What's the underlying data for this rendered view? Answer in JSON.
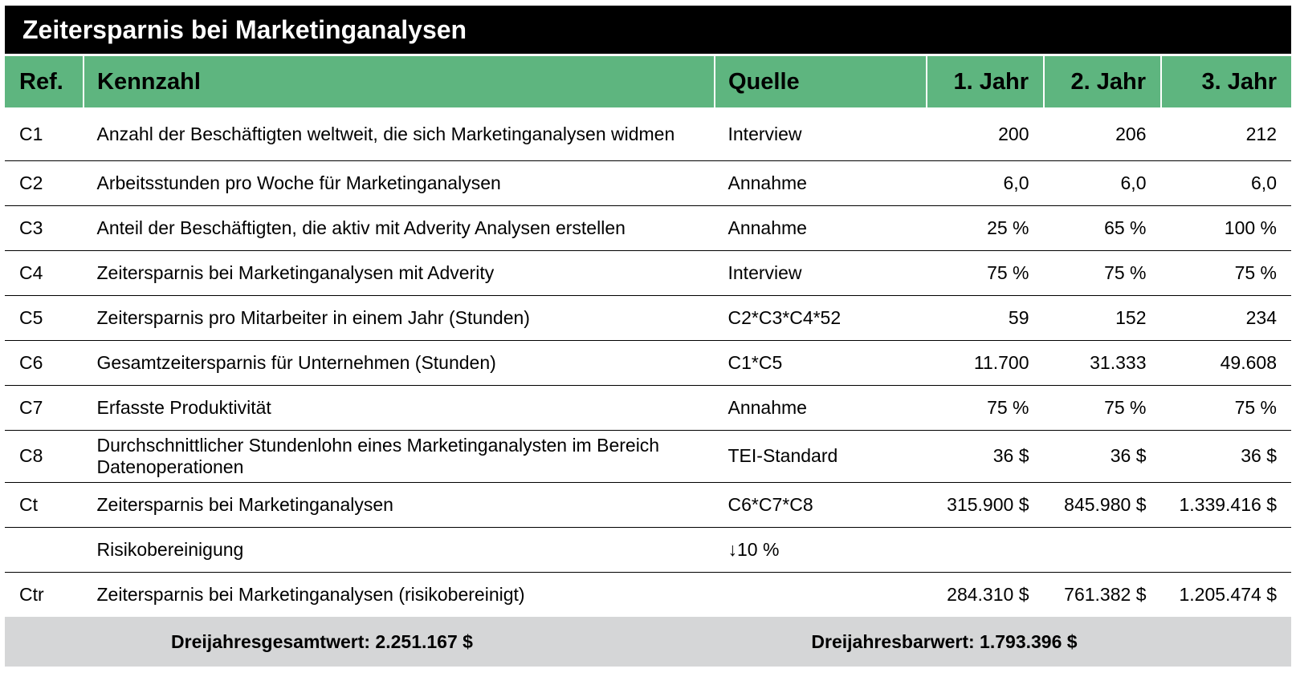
{
  "title": "Zeitersparnis bei Marketinganalysen",
  "header": {
    "ref": "Ref.",
    "metric": "Kennzahl",
    "source": "Quelle",
    "year1": "1. Jahr",
    "year2": "2. Jahr",
    "year3": "3. Jahr"
  },
  "rows": [
    {
      "ref": "C1",
      "metric": "Anzahl der Beschäftigten weltweit, die sich Marketinganalysen widmen",
      "source": "Interview",
      "y1": "200",
      "y2": "206",
      "y3": "212"
    },
    {
      "ref": "C2",
      "metric": "Arbeitsstunden pro Woche für Marketinganalysen",
      "source": "Annahme",
      "y1": "6,0",
      "y2": "6,0",
      "y3": "6,0"
    },
    {
      "ref": "C3",
      "metric": "Anteil der Beschäftigten, die aktiv mit Adverity Analysen erstellen",
      "source": "Annahme",
      "y1": "25 %",
      "y2": "65 %",
      "y3": "100 %"
    },
    {
      "ref": "C4",
      "metric": "Zeitersparnis bei Marketinganalysen mit Adverity",
      "source": "Interview",
      "y1": "75 %",
      "y2": "75 %",
      "y3": "75 %"
    },
    {
      "ref": "C5",
      "metric": "Zeitersparnis pro Mitarbeiter in einem Jahr (Stunden)",
      "source": "C2*C3*C4*52",
      "y1": "59",
      "y2": "152",
      "y3": "234"
    },
    {
      "ref": "C6",
      "metric": "Gesamtzeitersparnis für Unternehmen (Stunden)",
      "source": "C1*C5",
      "y1": "11.700",
      "y2": "31.333",
      "y3": "49.608"
    },
    {
      "ref": "C7",
      "metric": "Erfasste Produktivität",
      "source": "Annahme",
      "y1": "75 %",
      "y2": "75 %",
      "y3": "75 %"
    },
    {
      "ref": "C8",
      "metric": "Durchschnittlicher Stundenlohn eines Marketinganalysten im Bereich Datenoperationen",
      "source": "TEI-Standard",
      "y1": "36 $",
      "y2": "36 $",
      "y3": "36 $"
    },
    {
      "ref": "Ct",
      "metric": "Zeitersparnis bei Marketinganalysen",
      "source": "C6*C7*C8",
      "y1": "315.900 $",
      "y2": "845.980 $",
      "y3": "1.339.416 $"
    },
    {
      "ref": "",
      "metric": "Risikobereinigung",
      "source": "↓10 %",
      "y1": "",
      "y2": "",
      "y3": ""
    },
    {
      "ref": "Ctr",
      "metric": "Zeitersparnis bei Marketinganalysen (risikobereinigt)",
      "source": "",
      "y1": "284.310 $",
      "y2": "761.382 $",
      "y3": "1.205.474 $"
    }
  ],
  "footer": {
    "total": "Dreijahresgesamtwert: 2.251.167 $",
    "npv": "Dreijahresbarwert: 1.793.396 $"
  },
  "colors": {
    "title_bg": "#000000",
    "header_bg": "#5eb57f",
    "footer_bg": "#d5d6d7"
  }
}
